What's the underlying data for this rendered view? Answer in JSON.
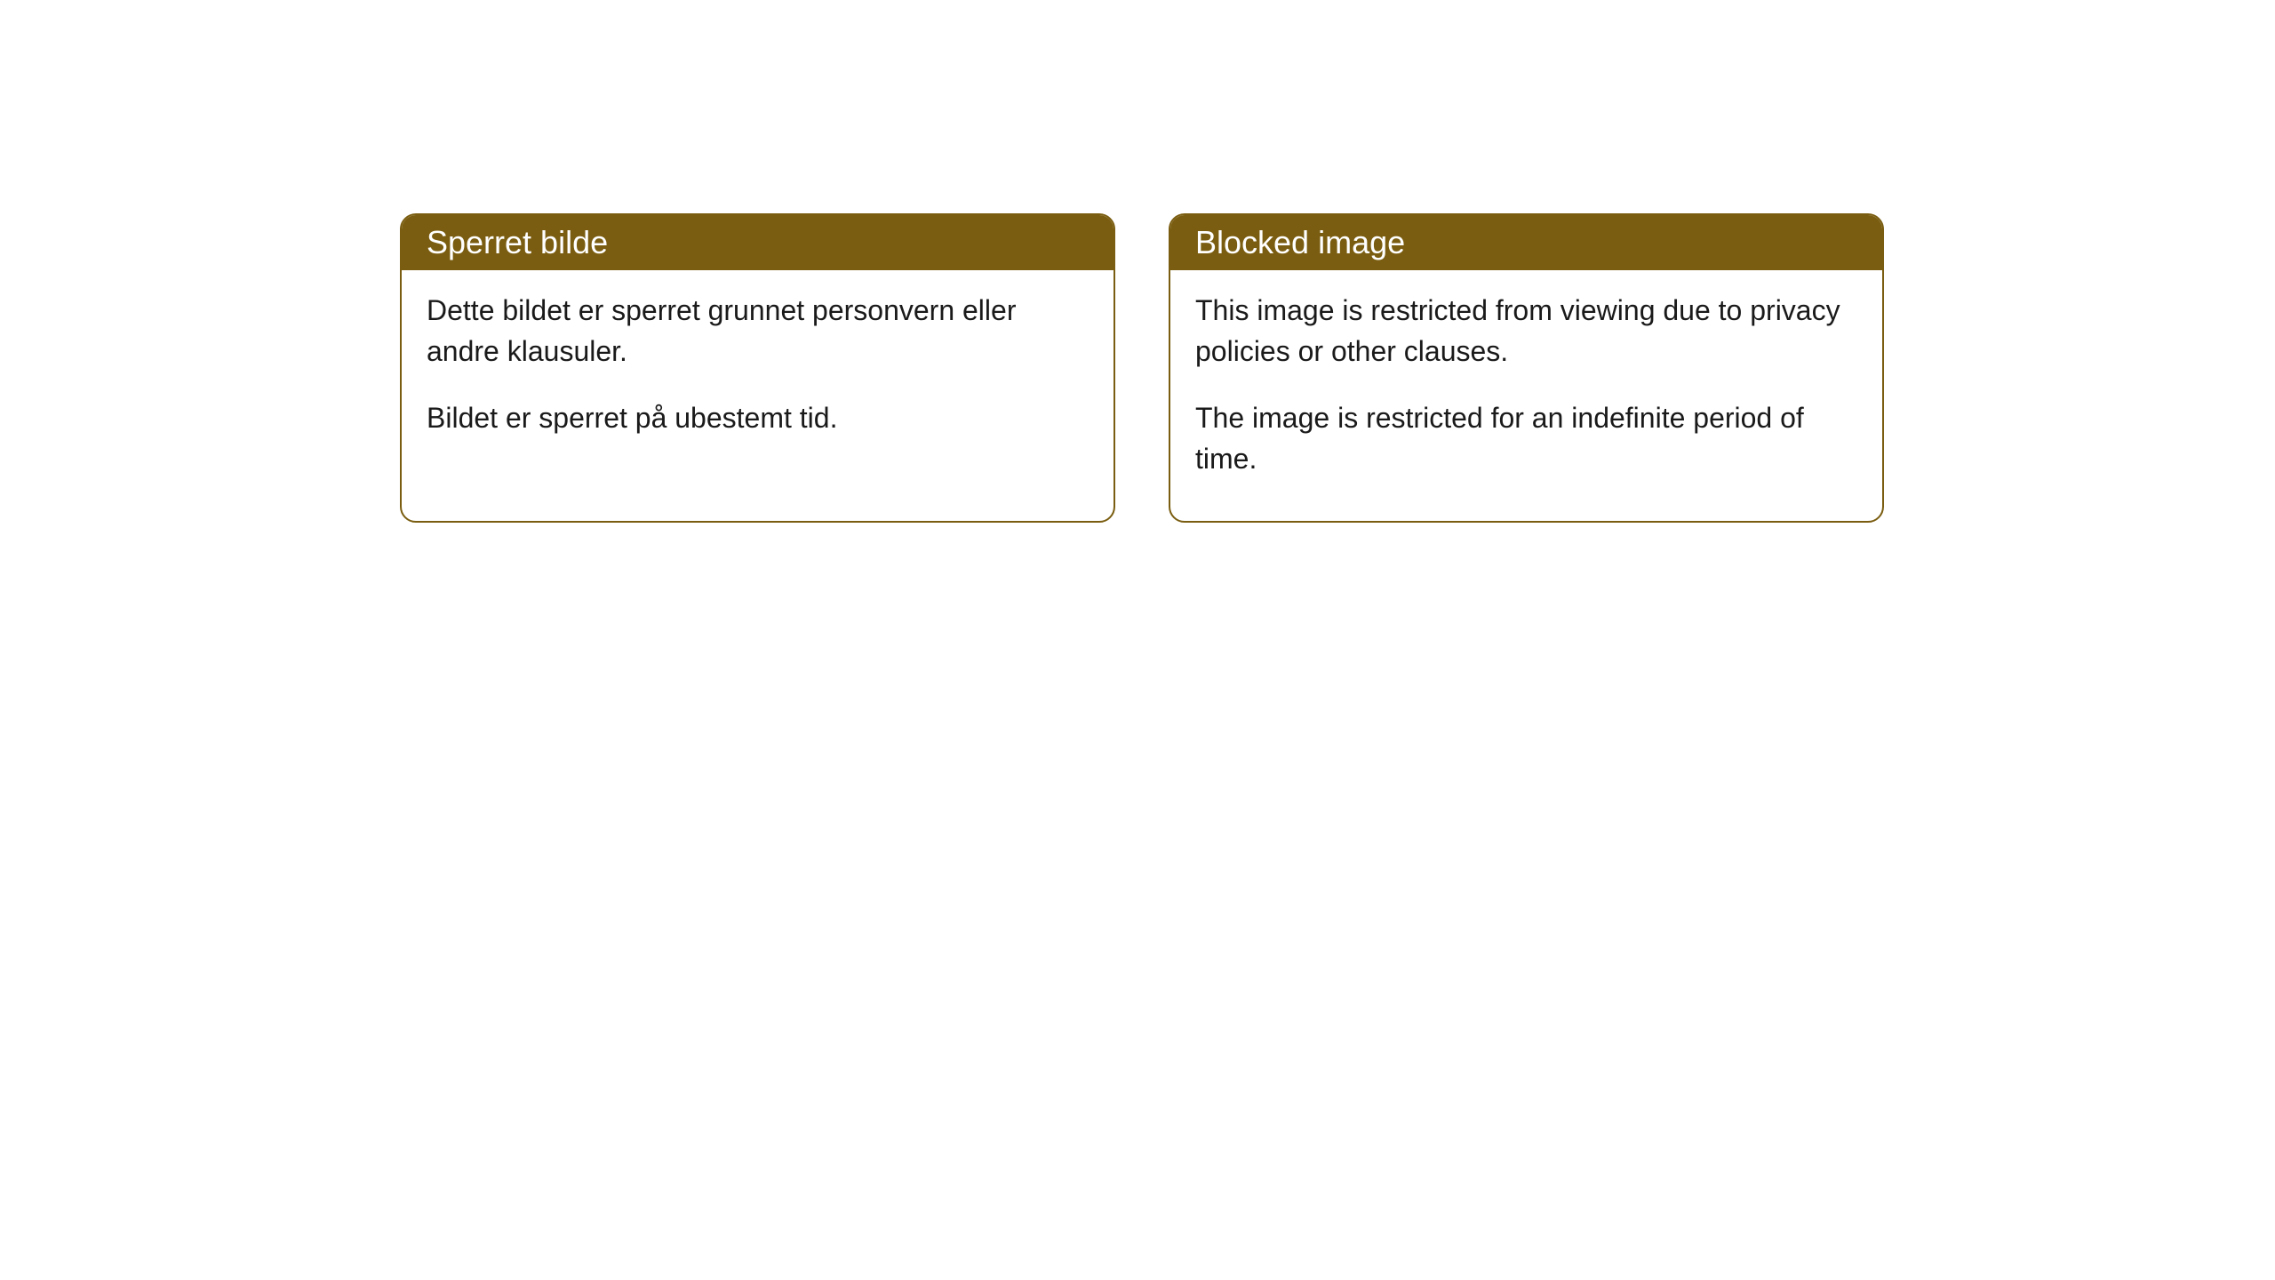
{
  "cards": [
    {
      "title": "Sperret bilde",
      "paragraph1": "Dette bildet er sperret grunnet personvern eller andre klausuler.",
      "paragraph2": "Bildet er sperret på ubestemt tid."
    },
    {
      "title": "Blocked image",
      "paragraph1": "This image is restricted from viewing due to privacy policies or other clauses.",
      "paragraph2": "The image is restricted for an indefinite period of time."
    }
  ],
  "styling": {
    "header_background_color": "#7a5d10",
    "header_text_color": "#ffffff",
    "border_color": "#7a5d10",
    "card_background_color": "#ffffff",
    "body_text_color": "#1a1a1a",
    "border_radius": 18,
    "header_fontsize": 36,
    "body_fontsize": 32
  }
}
